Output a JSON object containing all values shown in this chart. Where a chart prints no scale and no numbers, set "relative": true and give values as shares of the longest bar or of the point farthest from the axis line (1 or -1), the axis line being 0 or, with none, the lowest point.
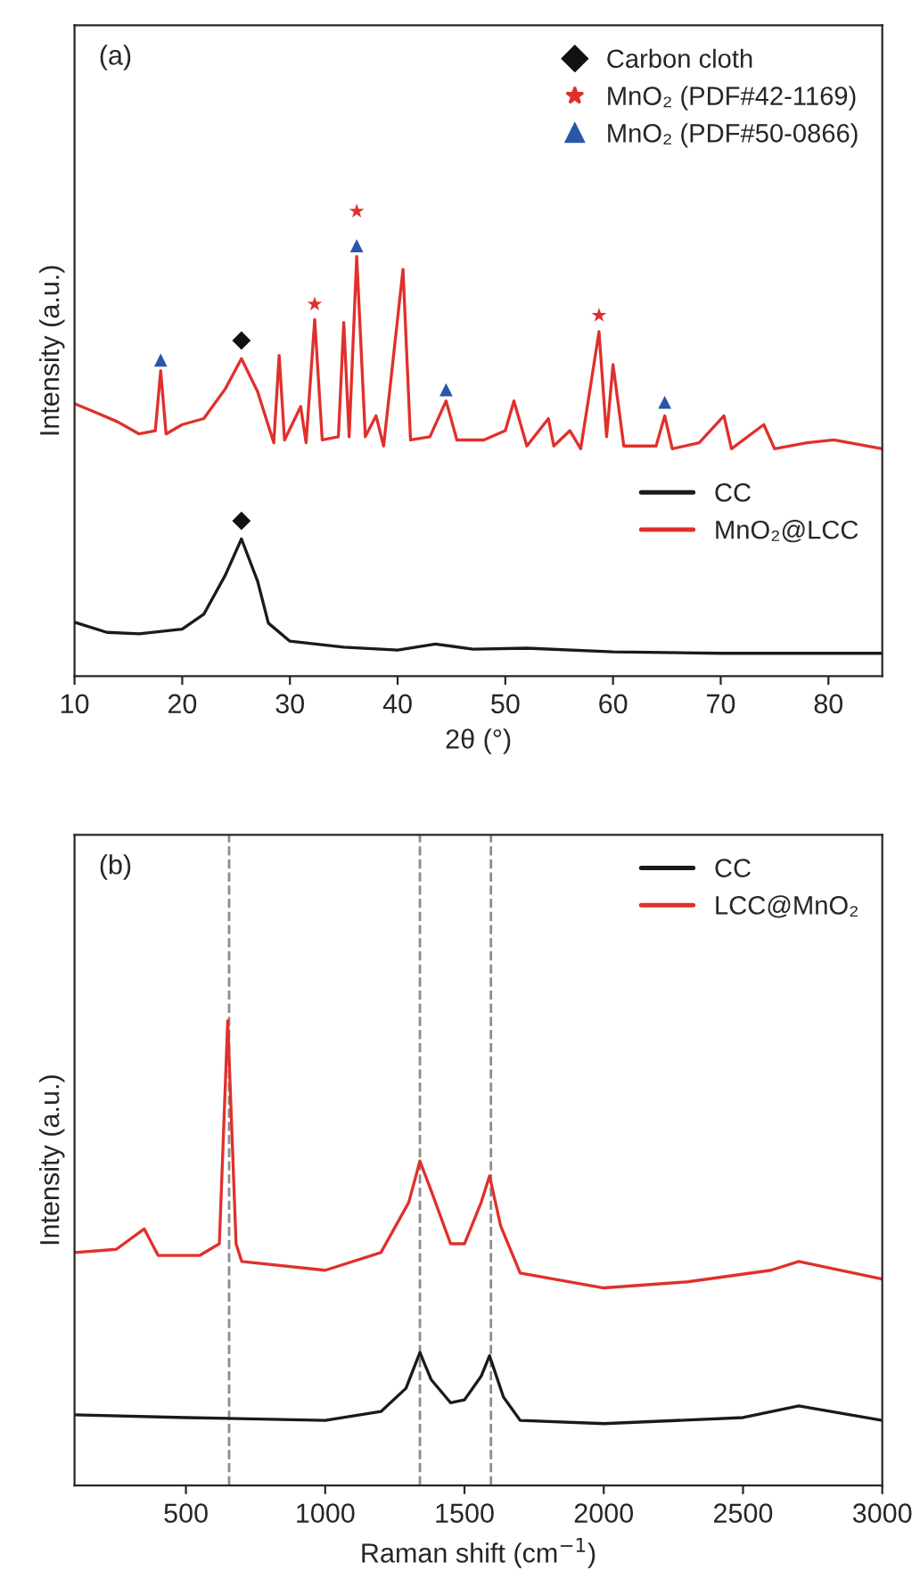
{
  "chart_data": [
    {
      "type": "line",
      "relative": true,
      "xlabel": "2θ (°)",
      "ylabel": "Intensity (a.u.)",
      "xlim": [
        10,
        85
      ],
      "xticks": [
        10,
        20,
        30,
        40,
        50,
        60,
        70,
        80
      ],
      "legend": "right",
      "tick_labels": "x",
      "annotations": [
        "(a)"
      ],
      "series": [
        {
          "type": "scatter",
          "name": "Carbon cloth",
          "color": "#111111",
          "marker": "diamond",
          "x": [
            25.5,
            25.5
          ],
          "values": [
            0.722,
            0.334
          ]
        },
        {
          "type": "scatter",
          "name": "MnO₂ (PDF#42-1169)",
          "color": "#e0302c",
          "marker": "star",
          "x": [
            32.3,
            36.2,
            58.7
          ],
          "values": [
            0.8,
            1.0,
            0.776
          ]
        },
        {
          "type": "scatter",
          "name": "MnO₂ (PDF#50-0866)",
          "color": "#2a56a8",
          "marker": "triangle",
          "x": [
            18,
            36.2,
            44.5,
            64.8
          ],
          "values": [
            0.68,
            0.926,
            0.616,
            0.589
          ]
        },
        {
          "type": "line",
          "name": "CC",
          "color": "#1a1a1a",
          "x": [
            10,
            13,
            16,
            20,
            22,
            24,
            25.5,
            27,
            28,
            30,
            35,
            40,
            43.5,
            47,
            52,
            60,
            70,
            85
          ],
          "values": [
            0.116,
            0.094,
            0.091,
            0.101,
            0.133,
            0.217,
            0.295,
            0.204,
            0.114,
            0.075,
            0.062,
            0.056,
            0.069,
            0.058,
            0.06,
            0.052,
            0.049,
            0.049
          ]
        },
        {
          "type": "line",
          "name": "MnO₂@LCC",
          "color": "#e0302c",
          "x": [
            10,
            12,
            14,
            16,
            17.5,
            18,
            18.5,
            20,
            22,
            24,
            25.5,
            27,
            28.5,
            29,
            29.5,
            31,
            31.5,
            32.3,
            33,
            34.5,
            35,
            35.5,
            36.2,
            37,
            38,
            38.7,
            40.5,
            41.2,
            43,
            44.5,
            45.5,
            48,
            50,
            50.8,
            52,
            54,
            54.5,
            56,
            57,
            58.7,
            59.4,
            60,
            61,
            64,
            64.8,
            65.5,
            68,
            70.3,
            71,
            74,
            75,
            78,
            80.5,
            85
          ],
          "values": [
            0.586,
            0.567,
            0.547,
            0.521,
            0.528,
            0.657,
            0.521,
            0.541,
            0.554,
            0.618,
            0.683,
            0.612,
            0.502,
            0.69,
            0.508,
            0.58,
            0.502,
            0.767,
            0.508,
            0.515,
            0.761,
            0.515,
            0.903,
            0.515,
            0.56,
            0.495,
            0.875,
            0.508,
            0.515,
            0.592,
            0.508,
            0.508,
            0.528,
            0.592,
            0.495,
            0.554,
            0.495,
            0.528,
            0.489,
            0.741,
            0.515,
            0.67,
            0.495,
            0.495,
            0.56,
            0.489,
            0.502,
            0.56,
            0.489,
            0.541,
            0.489,
            0.502,
            0.508,
            0.489
          ]
        }
      ]
    },
    {
      "type": "line",
      "relative": true,
      "xlabel": "Raman shift (cm$^{−1}$)",
      "ylabel": "Intensity (a.u.)",
      "xlim": [
        100,
        3000
      ],
      "xticks": [
        500,
        1000,
        1500,
        2000,
        2500,
        3000
      ],
      "legend": "top right",
      "tick_labels": "x",
      "annotations": [
        "(b)"
      ],
      "ref_lines": [
        {
          "axis": "x",
          "value": 655,
          "color": "#8c8c8c",
          "line_style": "dashed"
        },
        {
          "axis": "x",
          "value": 1340,
          "color": "#8c8c8c",
          "line_style": "dashed"
        },
        {
          "axis": "x",
          "value": 1595,
          "color": "#8c8c8c",
          "line_style": "dashed"
        }
      ],
      "series": [
        {
          "name": "CC",
          "color": "#1a1a1a",
          "x": [
            100,
            500,
            1000,
            1200,
            1290,
            1340,
            1380,
            1450,
            1500,
            1560,
            1590,
            1640,
            1700,
            2000,
            2500,
            2700,
            3000
          ],
          "values": [
            0.152,
            0.146,
            0.14,
            0.159,
            0.209,
            0.286,
            0.228,
            0.178,
            0.184,
            0.235,
            0.279,
            0.19,
            0.14,
            0.133,
            0.146,
            0.171,
            0.14
          ]
        },
        {
          "name": "LCC@MnO₂",
          "color": "#e0302c",
          "x": [
            100,
            250,
            350,
            400,
            550,
            620,
            650,
            680,
            700,
            1000,
            1200,
            1300,
            1340,
            1380,
            1450,
            1500,
            1560,
            1590,
            1630,
            1700,
            2000,
            2300,
            2600,
            2700,
            3000
          ],
          "values": [
            0.501,
            0.508,
            0.552,
            0.495,
            0.495,
            0.52,
            1.0,
            0.52,
            0.482,
            0.463,
            0.501,
            0.609,
            0.698,
            0.635,
            0.52,
            0.52,
            0.609,
            0.666,
            0.558,
            0.457,
            0.425,
            0.438,
            0.463,
            0.482,
            0.444
          ]
        }
      ]
    }
  ]
}
